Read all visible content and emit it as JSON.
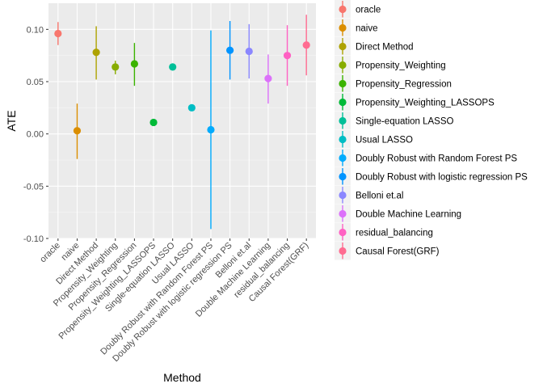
{
  "chart_data": {
    "type": "scatter",
    "subtype": "pointrange",
    "xlabel": "Method",
    "ylabel": "ATE",
    "ylim": [
      -0.1,
      0.125
    ],
    "yticks": [
      -0.1,
      -0.05,
      0.0,
      0.05,
      0.1
    ],
    "ytick_labels": [
      "-0.10",
      "-0.05",
      "0.00",
      "0.05",
      "0.10"
    ],
    "grid": true,
    "legend_position": "right",
    "categories": [
      "oracle",
      "naive",
      "Direct Method",
      "Propensity_Weighting",
      "Propensity_Regression",
      "Propensity_Weighting_LASSOPS",
      "Single-equation LASSO",
      "Usual LASSO",
      "Doubly Robust with Random Forest PS",
      "Doubly Robust with logistic regression PS",
      "Belloni et.al",
      "Double Machine Learning",
      "residual_balancing",
      "Causal Forest(GRF)"
    ],
    "values": [
      0.096,
      0.003,
      0.078,
      0.064,
      0.067,
      0.011,
      0.064,
      0.025,
      0.004,
      0.08,
      0.079,
      0.053,
      0.075,
      0.085
    ],
    "lower": [
      0.085,
      -0.024,
      0.052,
      0.057,
      0.046,
      0.011,
      0.064,
      0.025,
      -0.091,
      0.052,
      0.053,
      0.029,
      0.046,
      0.056
    ],
    "upper": [
      0.107,
      0.029,
      0.103,
      0.07,
      0.087,
      0.011,
      0.064,
      0.025,
      0.099,
      0.108,
      0.105,
      0.076,
      0.104,
      0.114
    ],
    "colors": [
      "#F8766D",
      "#DB8E00",
      "#AEA200",
      "#87AC00",
      "#3BB300",
      "#00BA38",
      "#00BF98",
      "#00BDC4",
      "#00ABFD",
      "#0094FF",
      "#8B87FF",
      "#DC71FA",
      "#FF61C3",
      "#FF6C91"
    ]
  }
}
